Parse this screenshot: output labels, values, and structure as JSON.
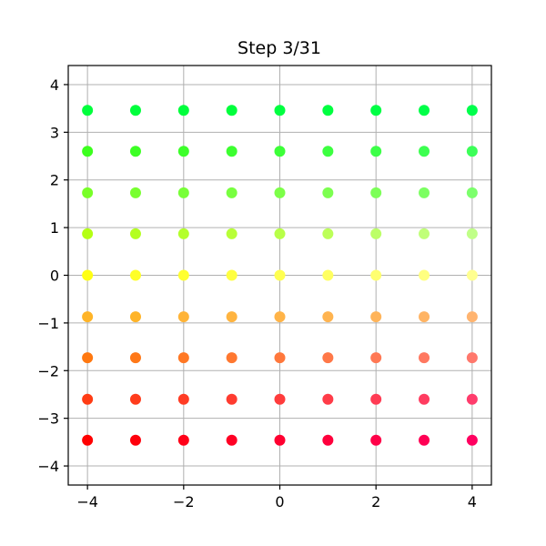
{
  "chart_data": {
    "type": "scatter",
    "title": "Step 3/31",
    "xlabel": "",
    "ylabel": "",
    "xlim": [
      -4.4,
      4.4
    ],
    "ylim": [
      -4.4,
      4.4
    ],
    "grid": true,
    "x_ticks": [
      {
        "value": -4,
        "label": "−4"
      },
      {
        "value": -2,
        "label": "−2"
      },
      {
        "value": 0,
        "label": "0"
      },
      {
        "value": 2,
        "label": "2"
      },
      {
        "value": 4,
        "label": "4"
      }
    ],
    "y_ticks": [
      {
        "value": -4,
        "label": "−4"
      },
      {
        "value": -3,
        "label": "−3"
      },
      {
        "value": -2,
        "label": "−2"
      },
      {
        "value": -1,
        "label": "−1"
      },
      {
        "value": 0,
        "label": "0"
      },
      {
        "value": 1,
        "label": "1"
      },
      {
        "value": 2,
        "label": "2"
      },
      {
        "value": 3,
        "label": "3"
      },
      {
        "value": 4,
        "label": "4"
      }
    ],
    "x_values": [
      -4,
      -3,
      -2,
      -1,
      0,
      1,
      2,
      3,
      4
    ],
    "y_values": [
      3.46,
      2.6,
      1.73,
      0.87,
      0,
      -0.87,
      -1.73,
      -2.6,
      -3.46
    ],
    "point_colors": [
      [
        "#00ff3c",
        "#00ff3c",
        "#00ff3c",
        "#00ff3c",
        "#00ff40",
        "#00ff40",
        "#00ff44",
        "#00ff48",
        "#00ff4c"
      ],
      [
        "#3cff1e",
        "#3cff24",
        "#3cff2a",
        "#3cff30",
        "#3cff38",
        "#3cff40",
        "#3cff48",
        "#3cff50",
        "#3cff58"
      ],
      [
        "#78ff28",
        "#78ff30",
        "#78ff38",
        "#78ff40",
        "#7cff48",
        "#7cff50",
        "#7cff58",
        "#7cff62",
        "#7cff6c"
      ],
      [
        "#b4ff14",
        "#b4ff20",
        "#b4ff2c",
        "#b8ff38",
        "#b8ff48",
        "#bcff58",
        "#bcff68",
        "#c0ff78",
        "#c0ff88"
      ],
      [
        "#ffff14",
        "#ffff28",
        "#ffff30",
        "#ffff40",
        "#ffff50",
        "#ffff60",
        "#ffff70",
        "#ffff80",
        "#ffff90"
      ],
      [
        "#ffb428",
        "#ffb428",
        "#ffb438",
        "#ffb440",
        "#ffb448",
        "#ffb450",
        "#ffb45a",
        "#ffb464",
        "#ffb470"
      ],
      [
        "#ff7810",
        "#ff7818",
        "#ff7824",
        "#ff7830",
        "#ff783c",
        "#ff7848",
        "#ff7854",
        "#ff7860",
        "#ff786c"
      ],
      [
        "#ff3c14",
        "#ff3c1c",
        "#ff3c24",
        "#ff3c30",
        "#ff3c3c",
        "#ff3c48",
        "#ff3c54",
        "#ff3c60",
        "#ff3c6c"
      ],
      [
        "#ff0000",
        "#ff000c",
        "#ff0018",
        "#ff0024",
        "#ff0030",
        "#ff003c",
        "#ff0048",
        "#ff0054",
        "#ff0060"
      ]
    ]
  }
}
